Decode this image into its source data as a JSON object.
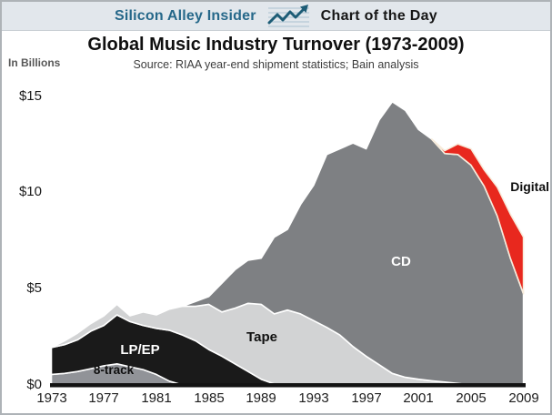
{
  "header": {
    "brand": "Silicon Alley Insider",
    "icon": "line-chart-arrow-icon",
    "title": "Chart of the Day"
  },
  "chart": {
    "title": "Global Music Industry Turnover (1973-2009)",
    "subtitle": "Source: RIAA year-end shipment statistics; Bain analysis",
    "unit_label": "In Billions"
  },
  "colors": {
    "header_bg": "#e2e7ec",
    "brand_teal": "#26688a",
    "eight_track": "#919398",
    "lp_ep": "#1a1a1a",
    "tape": "#d2d3d4",
    "cd": "#7e8083",
    "digital": "#e8281e",
    "band_separator": "#ffffff",
    "axis_line": "#131313"
  },
  "chart_data": {
    "type": "area",
    "stacked": true,
    "title": "Global Music Industry Turnover (1973-2009)",
    "subtitle": "Source: RIAA year-end shipment statistics; Bain analysis",
    "ylabel": "In Billions",
    "ylim": [
      0,
      15
    ],
    "grid": false,
    "legend_position": "labels-on-areas",
    "x": [
      1973,
      1974,
      1975,
      1976,
      1977,
      1978,
      1979,
      1980,
      1981,
      1982,
      1983,
      1984,
      1985,
      1986,
      1987,
      1988,
      1989,
      1990,
      1991,
      1992,
      1993,
      1994,
      1995,
      1996,
      1997,
      1998,
      1999,
      2000,
      2001,
      2002,
      2003,
      2004,
      2005,
      2006,
      2007,
      2008,
      2009
    ],
    "x_tick_labels": [
      "1973",
      "1977",
      "1981",
      "1985",
      "1989",
      "1993",
      "1997",
      "2001",
      "2005",
      "2009"
    ],
    "y_tick_labels": [
      "$0",
      "$5",
      "$10",
      "$15"
    ],
    "series": [
      {
        "name": "8-track",
        "color": "#919398",
        "outline": "#ffffff",
        "values": [
          0.55,
          0.6,
          0.7,
          0.85,
          1.0,
          1.1,
          0.95,
          0.8,
          0.55,
          0.2,
          0,
          0,
          0,
          0,
          0,
          0,
          0,
          0,
          0,
          0,
          0,
          0,
          0,
          0,
          0,
          0,
          0,
          0,
          0,
          0,
          0,
          0,
          0,
          0,
          0,
          0,
          0
        ]
      },
      {
        "name": "LP/EP",
        "color": "#1a1a1a",
        "outline": "#ffffff",
        "values": [
          1.4,
          1.5,
          1.65,
          1.95,
          2.1,
          2.55,
          2.35,
          2.3,
          2.4,
          2.65,
          2.6,
          2.3,
          1.85,
          1.5,
          1.1,
          0.7,
          0.3,
          0.05,
          0,
          0,
          0,
          0,
          0,
          0,
          0,
          0,
          0,
          0,
          0,
          0,
          0,
          0,
          0,
          0,
          0,
          0,
          0
        ]
      },
      {
        "name": "Tape",
        "color": "#d2d3d4",
        "outline": "#ffffff",
        "values": [
          0,
          0.2,
          0.35,
          0.4,
          0.5,
          0.55,
          0.3,
          0.7,
          0.7,
          1.1,
          1.5,
          1.8,
          2.35,
          2.3,
          2.9,
          3.55,
          3.9,
          3.65,
          3.9,
          3.7,
          3.35,
          3.0,
          2.6,
          2.0,
          1.5,
          1.05,
          0.6,
          0.4,
          0.3,
          0.22,
          0.15,
          0.08,
          0,
          0,
          0,
          0,
          0
        ]
      },
      {
        "name": "CD",
        "color": "#7e8083",
        "outline": "#ffffff",
        "values": [
          0,
          0,
          0,
          0,
          0,
          0,
          0,
          0,
          0,
          0,
          0,
          0.25,
          0.4,
          1.5,
          2.0,
          2.25,
          2.4,
          4.0,
          4.2,
          5.7,
          7.05,
          9.0,
          9.7,
          10.6,
          10.8,
          12.75,
          14.15,
          13.9,
          13.0,
          12.58,
          11.9,
          11.92,
          11.45,
          10.35,
          8.8,
          6.6,
          4.75
        ]
      },
      {
        "name": "Digital",
        "color": "#e8281e",
        "outline": "#f7ecdc",
        "values": [
          0,
          0,
          0,
          0,
          0,
          0,
          0,
          0,
          0,
          0,
          0,
          0,
          0,
          0,
          0,
          0,
          0,
          0,
          0,
          0,
          0,
          0,
          0,
          0,
          0,
          0,
          0,
          0,
          0,
          0,
          0.15,
          0.55,
          0.85,
          0.85,
          1.5,
          2.3,
          2.95
        ]
      }
    ]
  }
}
